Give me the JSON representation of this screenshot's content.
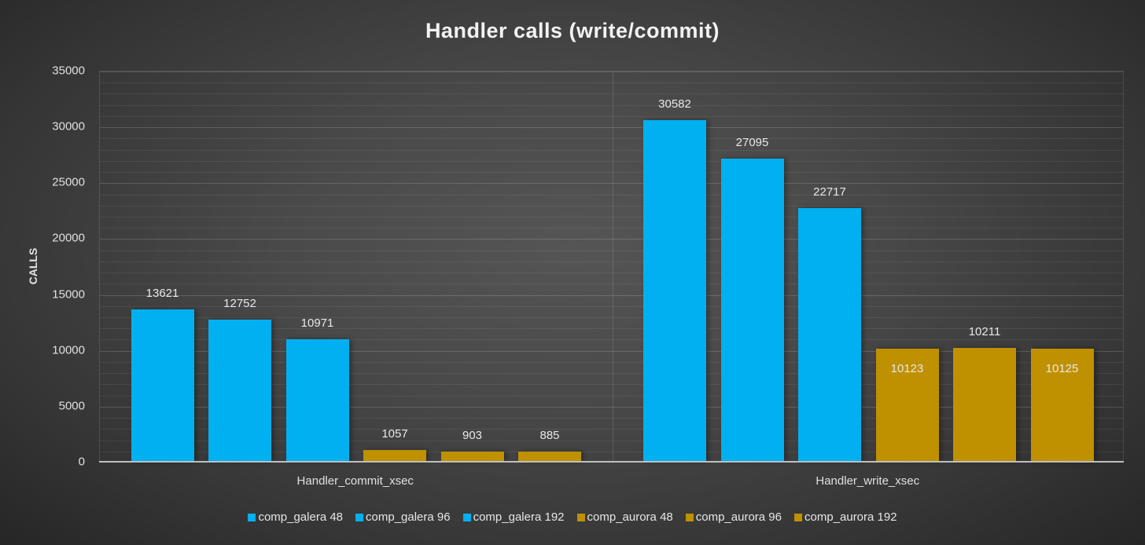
{
  "chart_data": {
    "type": "bar",
    "title": "Handler calls (write/commit)",
    "xlabel": "",
    "ylabel": "CALLS",
    "ylim": [
      0,
      35000
    ],
    "yticks": [
      0,
      5000,
      10000,
      15000,
      20000,
      25000,
      30000,
      35000
    ],
    "grid": true,
    "legend_position": "bottom",
    "categories": [
      "Handler_commit_xsec",
      "Handler_write_xsec"
    ],
    "series": [
      {
        "name": "comp_galera 48",
        "color": "#00b0f0",
        "values": [
          13621,
          30582
        ]
      },
      {
        "name": "comp_galera 96",
        "color": "#00b0f0",
        "values": [
          12752,
          27095
        ]
      },
      {
        "name": "comp_galera 192",
        "color": "#00b0f0",
        "values": [
          10971,
          22717
        ]
      },
      {
        "name": "comp_aurora 48",
        "color": "#bf9000",
        "values": [
          1057,
          10123
        ]
      },
      {
        "name": "comp_aurora 96",
        "color": "#bf9000",
        "values": [
          903,
          10211
        ]
      },
      {
        "name": "comp_aurora 192",
        "color": "#bf9000",
        "values": [
          885,
          10125
        ]
      }
    ]
  }
}
